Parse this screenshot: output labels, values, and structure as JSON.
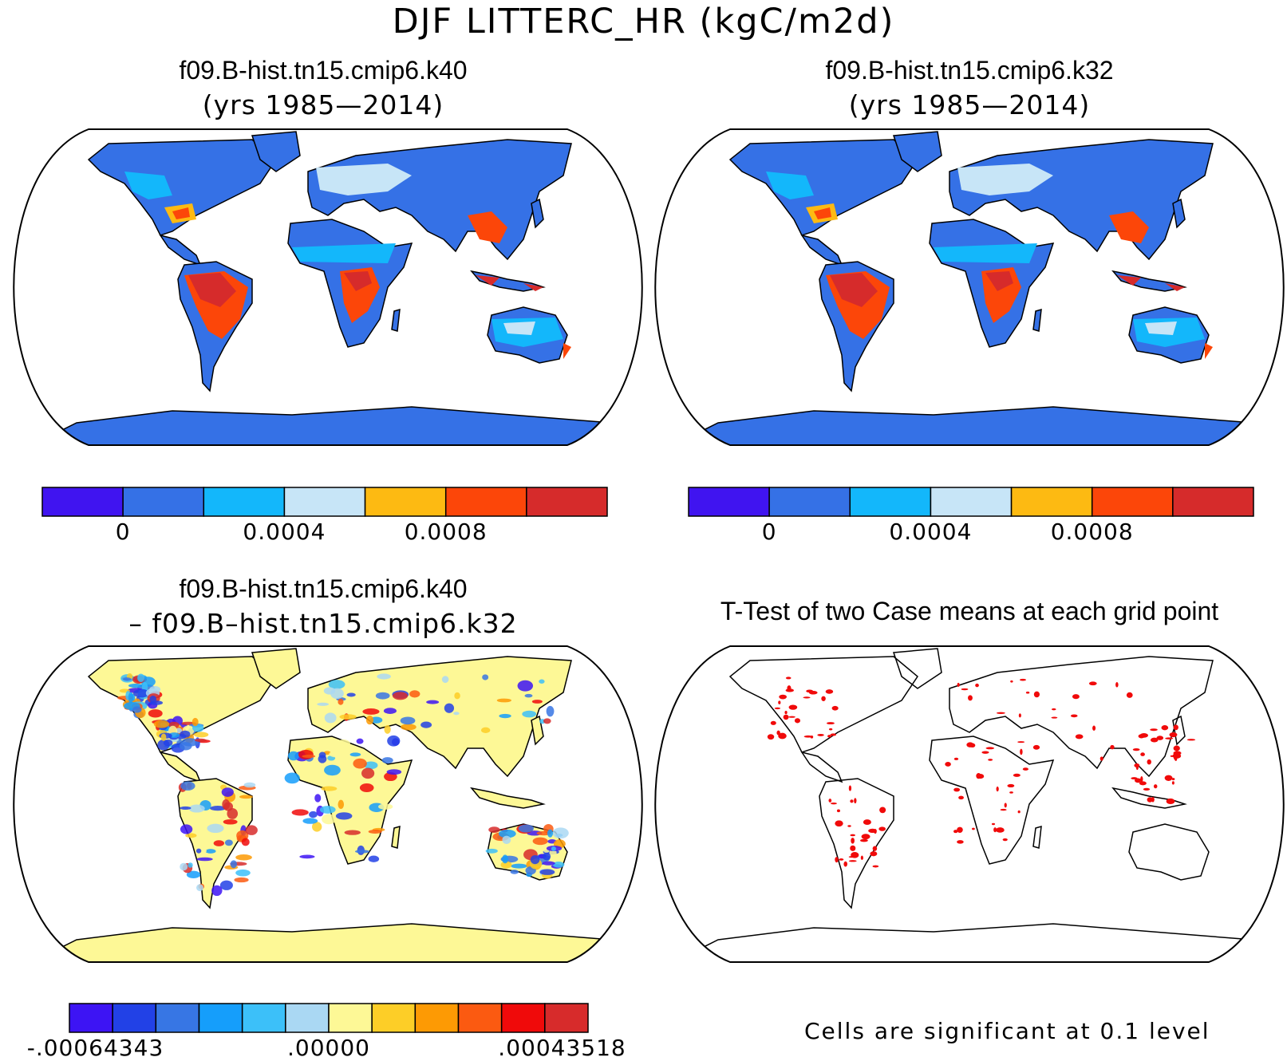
{
  "title": "DJF LITTERC_HR (kgC/m2d)",
  "panels": [
    {
      "case": "f09.B-hist.tn15.cmip6.k40",
      "years": "(yrs 1985—2014)"
    },
    {
      "case": "f09.B-hist.tn15.cmip6.k32",
      "years": "(yrs 1985—2014)"
    },
    {
      "case": "f09.B-hist.tn15.cmip6.k40",
      "minus": "– f09.B–hist.tn15.cmip6.k32"
    },
    {
      "title": "T-Test of two Case means at each grid point",
      "note": "Cells are significant at 0.1 level"
    }
  ],
  "colorbar_abs": {
    "colors": [
      "#4014f0",
      "#3571e6",
      "#13b7fb",
      "#c7e5f7",
      "#fdba12",
      "#fc4609",
      "#d62b2b"
    ],
    "labels": [
      "0",
      "0.0004",
      "0.0008"
    ]
  },
  "colorbar_diff": {
    "colors": [
      "#3d14f4",
      "#2241e6",
      "#3776e4",
      "#159efb",
      "#3cc0f9",
      "#aad8f3",
      "#fdf896",
      "#fdce27",
      "#fd9a04",
      "#fb5a11",
      "#f00a0a",
      "#d72b2b"
    ],
    "labels": [
      "-.00064343",
      ".00000",
      ".00043518"
    ]
  },
  "colors": {
    "land_abs": "#3571e6",
    "land_diff": "#fdf896",
    "significant": "#f00a0a",
    "coast": "#000000"
  }
}
